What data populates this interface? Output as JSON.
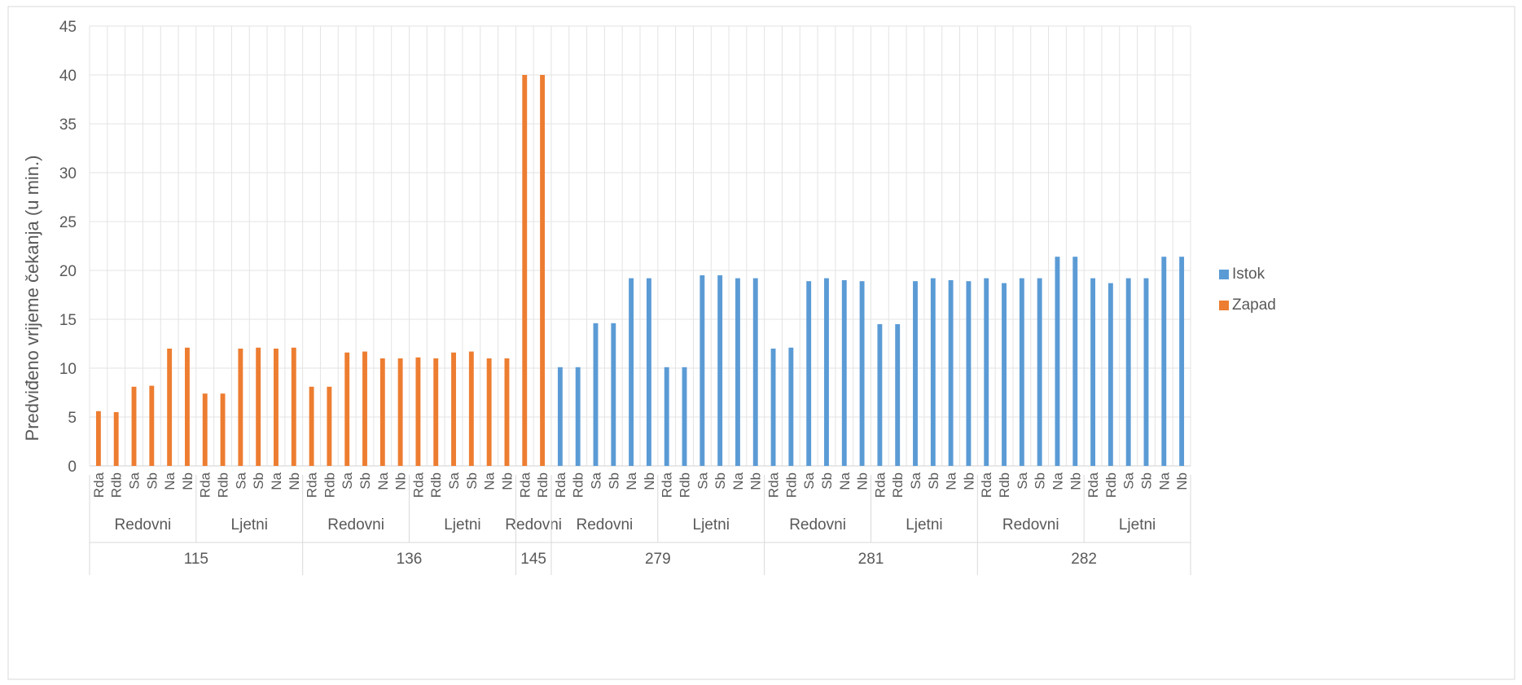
{
  "chart_data": {
    "type": "bar",
    "ylabel": "Predviđeno vrijeme čekanja (u min.)",
    "xlabel": "",
    "ylim": [
      0,
      45
    ],
    "yticks": [
      0,
      5,
      10,
      15,
      20,
      25,
      30,
      35,
      40,
      45
    ],
    "grid": true,
    "legend_position": "right",
    "legend": [
      {
        "name": "Istok",
        "color": "#5b9bd5"
      },
      {
        "name": "Zapad",
        "color": "#ed7d31"
      }
    ],
    "groups": [
      {
        "route": "115",
        "series": "Zapad",
        "schedules": [
          {
            "name": "Redovni",
            "bars": [
              [
                "Rda",
                5.6
              ],
              [
                "Rdb",
                5.5
              ],
              [
                "Sa",
                8.1
              ],
              [
                "Sb",
                8.2
              ],
              [
                "Na",
                12.0
              ],
              [
                "Nb",
                12.1
              ]
            ]
          },
          {
            "name": "Ljetni",
            "bars": [
              [
                "Rda",
                7.4
              ],
              [
                "Rdb",
                7.4
              ],
              [
                "Sa",
                12.0
              ],
              [
                "Sb",
                12.1
              ],
              [
                "Na",
                12.0
              ],
              [
                "Nb",
                12.1
              ]
            ]
          }
        ]
      },
      {
        "route": "136",
        "series": "Zapad",
        "schedules": [
          {
            "name": "Redovni",
            "bars": [
              [
                "Rda",
                8.1
              ],
              [
                "Rdb",
                8.1
              ],
              [
                "Sa",
                11.6
              ],
              [
                "Sb",
                11.7
              ],
              [
                "Na",
                11.0
              ],
              [
                "Nb",
                11.0
              ]
            ]
          },
          {
            "name": "Ljetni",
            "bars": [
              [
                "Rda",
                11.1
              ],
              [
                "Rdb",
                11.0
              ],
              [
                "Sa",
                11.6
              ],
              [
                "Sb",
                11.7
              ],
              [
                "Na",
                11.0
              ],
              [
                "Nb",
                11.0
              ]
            ]
          }
        ]
      },
      {
        "route": "145",
        "series": "Zapad",
        "schedules": [
          {
            "name": "Redovni",
            "bars": [
              [
                "Rda",
                40.0
              ],
              [
                "Rdb",
                40.0
              ]
            ]
          }
        ]
      },
      {
        "route": "279",
        "series": "Istok",
        "schedules": [
          {
            "name": "Redovni",
            "bars": [
              [
                "Rda",
                10.1
              ],
              [
                "Rdb",
                10.1
              ],
              [
                "Sa",
                14.6
              ],
              [
                "Sb",
                14.6
              ],
              [
                "Na",
                19.2
              ],
              [
                "Nb",
                19.2
              ]
            ]
          },
          {
            "name": "Ljetni",
            "bars": [
              [
                "Rda",
                10.1
              ],
              [
                "Rdb",
                10.1
              ],
              [
                "Sa",
                19.5
              ],
              [
                "Sb",
                19.5
              ],
              [
                "Na",
                19.2
              ],
              [
                "Nb",
                19.2
              ]
            ]
          }
        ]
      },
      {
        "route": "281",
        "series": "Istok",
        "schedules": [
          {
            "name": "Redovni",
            "bars": [
              [
                "Rda",
                12.0
              ],
              [
                "Rdb",
                12.1
              ],
              [
                "Sa",
                18.9
              ],
              [
                "Sb",
                19.2
              ],
              [
                "Na",
                19.0
              ],
              [
                "Nb",
                18.9
              ]
            ]
          },
          {
            "name": "Ljetni",
            "bars": [
              [
                "Rda",
                14.5
              ],
              [
                "Rdb",
                14.5
              ],
              [
                "Sa",
                18.9
              ],
              [
                "Sb",
                19.2
              ],
              [
                "Na",
                19.0
              ],
              [
                "Nb",
                18.9
              ]
            ]
          }
        ]
      },
      {
        "route": "282",
        "series": "Istok",
        "schedules": [
          {
            "name": "Redovni",
            "bars": [
              [
                "Rda",
                19.2
              ],
              [
                "Rdb",
                18.7
              ],
              [
                "Sa",
                19.2
              ],
              [
                "Sb",
                19.2
              ],
              [
                "Na",
                21.4
              ],
              [
                "Nb",
                21.4
              ]
            ]
          },
          {
            "name": "Ljetni",
            "bars": [
              [
                "Rda",
                19.2
              ],
              [
                "Rdb",
                18.7
              ],
              [
                "Sa",
                19.2
              ],
              [
                "Sb",
                19.2
              ],
              [
                "Na",
                21.4
              ],
              [
                "Nb",
                21.4
              ]
            ]
          }
        ]
      }
    ]
  }
}
